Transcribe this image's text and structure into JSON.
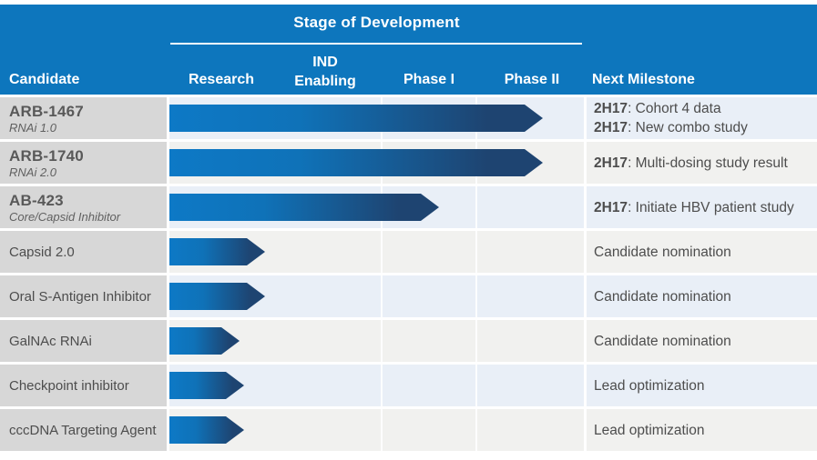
{
  "header": {
    "stage_group_label": "Stage of Development",
    "columns": {
      "candidate": "Candidate",
      "research": "Research",
      "ind_enabling_line1": "IND",
      "ind_enabling_line2": "Enabling",
      "phase_1": "Phase I",
      "phase_2": "Phase II",
      "next_milestone": "Next Milestone"
    }
  },
  "colors": {
    "header_blue": "#0d76bd",
    "arrow_bright_blue": "#0d79c6",
    "arrow_navy": "#1e4471",
    "label_cell_gray": "#d7d7d7",
    "row_tint_blue": "#e9eff7",
    "row_tint_gray": "#f1f1ef",
    "body_text": "#4d4d4d",
    "candidate_text": "#595959"
  },
  "chart_data": {
    "type": "bar",
    "title": "Stage of Development",
    "stages": [
      "Research",
      "IND Enabling",
      "Phase I",
      "Phase II"
    ],
    "xlim": [
      0,
      1
    ],
    "legend": false,
    "note": "progress = fraction of full pipeline width (start of Research = 0, end of Phase II = 1)",
    "rows": [
      {
        "candidate": "ARB-1467",
        "subtitle": "RNAi 1.0",
        "progress": 0.9,
        "stage_reached": "Phase II",
        "milestones": [
          {
            "label": "2H17",
            "text": ": Cohort 4 data"
          },
          {
            "label": "2H17",
            "text": ": New combo study"
          }
        ]
      },
      {
        "candidate": "ARB-1740",
        "subtitle": "RNAi 2.0",
        "progress": 0.9,
        "stage_reached": "Phase II",
        "milestones": [
          {
            "label": "2H17",
            "text": ": Multi-dosing study result"
          }
        ]
      },
      {
        "candidate": "AB-423",
        "subtitle": "Core/Capsid Inhibitor",
        "progress": 0.65,
        "stage_reached": "Phase I",
        "milestones": [
          {
            "label": "2H17",
            "text": ": Initiate HBV patient study"
          }
        ]
      },
      {
        "candidate": "Capsid 2.0",
        "progress": 0.23,
        "stage_reached": "Research",
        "milestones": [
          {
            "text": "Candidate nomination"
          }
        ]
      },
      {
        "candidate": "Oral S-Antigen Inhibitor",
        "progress": 0.23,
        "stage_reached": "Research",
        "milestones": [
          {
            "text": "Candidate nomination"
          }
        ]
      },
      {
        "candidate": "GalNAc RNAi",
        "progress": 0.17,
        "stage_reached": "Research",
        "milestones": [
          {
            "text": "Candidate nomination"
          }
        ]
      },
      {
        "candidate": "Checkpoint inhibitor",
        "progress": 0.18,
        "stage_reached": "Research",
        "milestones": [
          {
            "text": "Lead optimization"
          }
        ]
      },
      {
        "candidate": "cccDNA Targeting Agent",
        "progress": 0.18,
        "stage_reached": "Research",
        "milestones": [
          {
            "text": "Lead optimization"
          }
        ]
      }
    ]
  }
}
